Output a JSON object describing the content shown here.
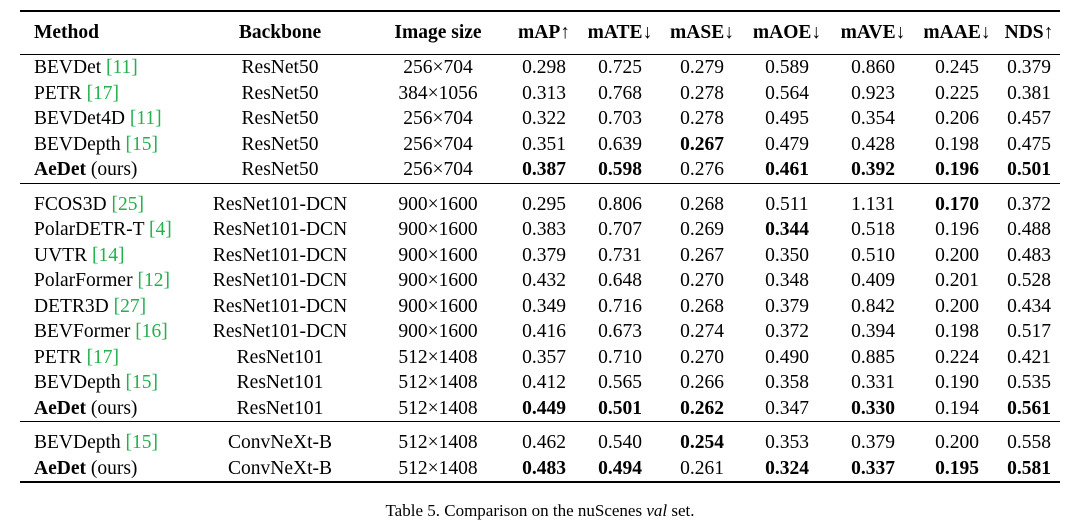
{
  "header": {
    "method": "Method",
    "backbone": "Backbone",
    "image_size": "Image size",
    "map": "mAP↑",
    "mate": "mATE↓",
    "mase": "mASE↓",
    "maoe": "mAOE↓",
    "mave": "mAVE↓",
    "maae": "mAAE↓",
    "nds": "NDS↑"
  },
  "groups": [
    [
      {
        "name": "BEVDet",
        "ref": "[11]",
        "name_bold": false,
        "suffix": "",
        "backbone": "ResNet50",
        "size": "256×704",
        "map": "0.298",
        "mate": "0.725",
        "mase": "0.279",
        "maoe": "0.589",
        "mave": "0.860",
        "maae": "0.245",
        "nds": "0.379"
      },
      {
        "name": "PETR",
        "ref": "[17]",
        "name_bold": false,
        "suffix": "",
        "backbone": "ResNet50",
        "size": "384×1056",
        "map": "0.313",
        "mate": "0.768",
        "mase": "0.278",
        "maoe": "0.564",
        "mave": "0.923",
        "maae": "0.225",
        "nds": "0.381"
      },
      {
        "name": "BEVDet4D",
        "ref": "[11]",
        "name_bold": false,
        "suffix": "",
        "backbone": "ResNet50",
        "size": "256×704",
        "map": "0.322",
        "mate": "0.703",
        "mase": "0.278",
        "maoe": "0.495",
        "mave": "0.354",
        "maae": "0.206",
        "nds": "0.457"
      },
      {
        "name": "BEVDepth",
        "ref": "[15]",
        "name_bold": false,
        "suffix": "",
        "backbone": "ResNet50",
        "size": "256×704",
        "map": "0.351",
        "mate": "0.639",
        "mase": "0.267",
        "maoe": "0.479",
        "mave": "0.428",
        "maae": "0.198",
        "nds": "0.475"
      },
      {
        "name": "AeDet",
        "ref": "",
        "name_bold": true,
        "suffix": "(ours)",
        "backbone": "ResNet50",
        "size": "256×704",
        "map": "0.387",
        "mate": "0.598",
        "mase": "0.276",
        "maoe": "0.461",
        "mave": "0.392",
        "maae": "0.196",
        "nds": "0.501"
      }
    ],
    [
      {
        "name": "FCOS3D",
        "ref": "[25]",
        "name_bold": false,
        "suffix": "",
        "backbone": "ResNet101-DCN",
        "size": "900×1600",
        "map": "0.295",
        "mate": "0.806",
        "mase": "0.268",
        "maoe": "0.511",
        "mave": "1.131",
        "maae": "0.170",
        "nds": "0.372"
      },
      {
        "name": "PolarDETR-T",
        "ref": "[4]",
        "name_bold": false,
        "suffix": "",
        "backbone": "ResNet101-DCN",
        "size": "900×1600",
        "map": "0.383",
        "mate": "0.707",
        "mase": "0.269",
        "maoe": "0.344",
        "mave": "0.518",
        "maae": "0.196",
        "nds": "0.488"
      },
      {
        "name": "UVTR",
        "ref": "[14]",
        "name_bold": false,
        "suffix": "",
        "backbone": "ResNet101-DCN",
        "size": "900×1600",
        "map": "0.379",
        "mate": "0.731",
        "mase": "0.267",
        "maoe": "0.350",
        "mave": "0.510",
        "maae": "0.200",
        "nds": "0.483"
      },
      {
        "name": "PolarFormer",
        "ref": "[12]",
        "name_bold": false,
        "suffix": "",
        "backbone": "ResNet101-DCN",
        "size": "900×1600",
        "map": "0.432",
        "mate": "0.648",
        "mase": "0.270",
        "maoe": "0.348",
        "mave": "0.409",
        "maae": "0.201",
        "nds": "0.528"
      },
      {
        "name": "DETR3D",
        "ref": "[27]",
        "name_bold": false,
        "suffix": "",
        "backbone": "ResNet101-DCN",
        "size": "900×1600",
        "map": "0.349",
        "mate": "0.716",
        "mase": "0.268",
        "maoe": "0.379",
        "mave": "0.842",
        "maae": "0.200",
        "nds": "0.434"
      },
      {
        "name": "BEVFormer",
        "ref": "[16]",
        "name_bold": false,
        "suffix": "",
        "backbone": "ResNet101-DCN",
        "size": "900×1600",
        "map": "0.416",
        "mate": "0.673",
        "mase": "0.274",
        "maoe": "0.372",
        "mave": "0.394",
        "maae": "0.198",
        "nds": "0.517"
      },
      {
        "name": "PETR",
        "ref": "[17]",
        "name_bold": false,
        "suffix": "",
        "backbone": "ResNet101",
        "size": "512×1408",
        "map": "0.357",
        "mate": "0.710",
        "mase": "0.270",
        "maoe": "0.490",
        "mave": "0.885",
        "maae": "0.224",
        "nds": "0.421"
      },
      {
        "name": "BEVDepth",
        "ref": "[15]",
        "name_bold": false,
        "suffix": "",
        "backbone": "ResNet101",
        "size": "512×1408",
        "map": "0.412",
        "mate": "0.565",
        "mase": "0.266",
        "maoe": "0.358",
        "mave": "0.331",
        "maae": "0.190",
        "nds": "0.535"
      },
      {
        "name": "AeDet",
        "ref": "",
        "name_bold": true,
        "suffix": "(ours)",
        "backbone": "ResNet101",
        "size": "512×1408",
        "map": "0.449",
        "mate": "0.501",
        "mase": "0.262",
        "maoe": "0.347",
        "mave": "0.330",
        "maae": "0.194",
        "nds": "0.561"
      }
    ],
    [
      {
        "name": "BEVDepth",
        "ref": "[15]",
        "name_bold": false,
        "suffix": "",
        "backbone": "ConvNeXt-B",
        "size": "512×1408",
        "map": "0.462",
        "mate": "0.540",
        "mase": "0.254",
        "maoe": "0.353",
        "mave": "0.379",
        "maae": "0.200",
        "nds": "0.558"
      },
      {
        "name": "AeDet",
        "ref": "",
        "name_bold": true,
        "suffix": "(ours)",
        "backbone": "ConvNeXt-B",
        "size": "512×1408",
        "map": "0.483",
        "mate": "0.494",
        "mase": "0.261",
        "maoe": "0.324",
        "mave": "0.337",
        "maae": "0.195",
        "nds": "0.581"
      }
    ]
  ],
  "bold_cells": [
    [
      [
        "map",
        "mate",
        "maoe",
        "mave",
        "maae",
        "nds"
      ],
      [
        3,
        "mase"
      ]
    ],
    [
      [
        0,
        "maae"
      ],
      [
        1,
        "maoe"
      ],
      [
        8,
        "map"
      ],
      [
        8,
        "mate"
      ],
      [
        8,
        "mase"
      ],
      [
        8,
        "mave"
      ],
      [
        8,
        "nds"
      ]
    ],
    [
      [
        0,
        "mase"
      ],
      [
        1,
        "map"
      ],
      [
        1,
        "mate"
      ],
      [
        1,
        "maoe"
      ],
      [
        1,
        "mave"
      ],
      [
        1,
        "maae"
      ],
      [
        1,
        "nds"
      ]
    ]
  ],
  "caption": {
    "prefix": "Table 5. Comparison on the nuScenes ",
    "italic": "val",
    "suffix": " set."
  }
}
